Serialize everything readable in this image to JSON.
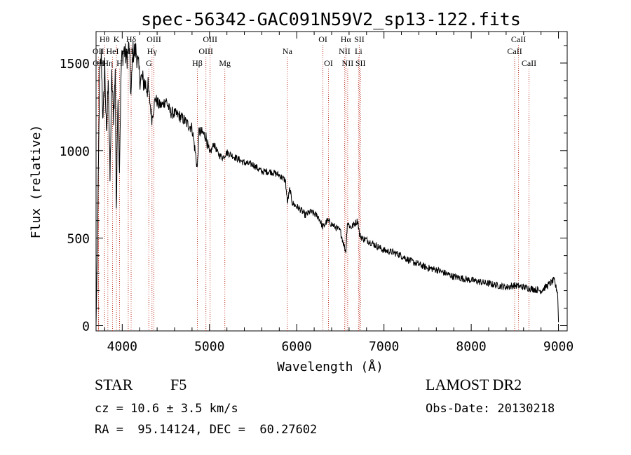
{
  "chart_data": {
    "type": "line",
    "title": "spec-56342-GAC091N59V2_sp13-122.fits",
    "xlabel": "Wavelength (Å)",
    "ylabel": "Flux (relative)",
    "xlim": [
      3700,
      9100
    ],
    "ylim": [
      -30,
      1680
    ],
    "xticks": [
      4000,
      5000,
      6000,
      7000,
      8000,
      9000
    ],
    "yticks": [
      0,
      500,
      1000,
      1500
    ],
    "grid": false,
    "series": [
      {
        "x": [
          3700,
          3720,
          3740,
          3760,
          3780,
          3800,
          3820,
          3840,
          3860,
          3880,
          3900,
          3920,
          3933,
          3950,
          3968,
          3990,
          4020,
          4050,
          4080,
          4101,
          4120,
          4160,
          4200,
          4250,
          4300,
          4340,
          4380,
          4420,
          4460,
          4500,
          4550,
          4600,
          4650,
          4700,
          4750,
          4800,
          4861,
          4880,
          4920,
          4960,
          5000,
          5020,
          5050,
          5100,
          5150,
          5200,
          5300,
          5400,
          5500,
          5600,
          5700,
          5800,
          5870,
          5893,
          5920,
          5950,
          6000,
          6050,
          6100,
          6150,
          6200,
          6250,
          6300,
          6350,
          6400,
          6450,
          6500,
          6563,
          6580,
          6620,
          6660,
          6700,
          6720,
          6750,
          6800,
          6900,
          7000,
          7100,
          7200,
          7300,
          7400,
          7500,
          7600,
          7700,
          7800,
          7900,
          8000,
          8100,
          8200,
          8300,
          8400,
          8500,
          8600,
          8700,
          8800,
          8900,
          8950,
          8970,
          8990,
          9000
        ],
        "y": [
          0,
          600,
          1420,
          1540,
          1150,
          1500,
          1060,
          1450,
          830,
          1420,
          1200,
          1440,
          620,
          1380,
          900,
          1510,
          1580,
          1520,
          1600,
          1300,
          1560,
          1570,
          1420,
          1390,
          1350,
          1180,
          1300,
          1260,
          1260,
          1290,
          1220,
          1210,
          1200,
          1180,
          1150,
          1130,
          900,
          1110,
          1100,
          1080,
          980,
          1000,
          1040,
          980,
          960,
          990,
          960,
          930,
          920,
          880,
          880,
          860,
          830,
          700,
          780,
          700,
          680,
          660,
          630,
          650,
          640,
          620,
          560,
          600,
          580,
          560,
          540,
          420,
          590,
          560,
          580,
          600,
          520,
          500,
          490,
          460,
          430,
          420,
          400,
          370,
          350,
          330,
          320,
          300,
          280,
          270,
          260,
          250,
          240,
          230,
          220,
          230,
          220,
          210,
          200,
          240,
          260,
          220,
          190,
          20
        ]
      }
    ],
    "line_markers": [
      {
        "label": "Hθ",
        "wave": 3797,
        "row": 0
      },
      {
        "label": "OII",
        "wave": 3727,
        "row": 1
      },
      {
        "label": "OII",
        "wave": 3729,
        "row": 2
      },
      {
        "label": "Hη",
        "wave": 3835,
        "row": 2
      },
      {
        "label": "HeI",
        "wave": 3889,
        "row": 1
      },
      {
        "label": "K",
        "wave": 3934,
        "row": 0
      },
      {
        "label": "H",
        "wave": 3969,
        "row": 2
      },
      {
        "label": "SII",
        "wave": 4069,
        "row": 1
      },
      {
        "label": "Hδ",
        "wave": 4102,
        "row": 0
      },
      {
        "label": "OIII",
        "wave": 4363,
        "row": 0
      },
      {
        "label": "Hγ",
        "wave": 4341,
        "row": 1
      },
      {
        "label": "G",
        "wave": 4305,
        "row": 2
      },
      {
        "label": "Hβ",
        "wave": 4861,
        "row": 2
      },
      {
        "label": "OIII",
        "wave": 5007,
        "row": 0
      },
      {
        "label": "OIII",
        "wave": 4959,
        "row": 1
      },
      {
        "label": "Mg",
        "wave": 5176,
        "row": 2
      },
      {
        "label": "Na",
        "wave": 5893,
        "row": 1
      },
      {
        "label": "OI",
        "wave": 6300,
        "row": 0
      },
      {
        "label": "OI",
        "wave": 6364,
        "row": 2
      },
      {
        "label": "Hα",
        "wave": 6563,
        "row": 0
      },
      {
        "label": "NII",
        "wave": 6548,
        "row": 1
      },
      {
        "label": "NII",
        "wave": 6584,
        "row": 2
      },
      {
        "label": "SII",
        "wave": 6717,
        "row": 0
      },
      {
        "label": "Li",
        "wave": 6708,
        "row": 1
      },
      {
        "label": "SII",
        "wave": 6731,
        "row": 2
      },
      {
        "label": "CaII",
        "wave": 8542,
        "row": 0
      },
      {
        "label": "CaII",
        "wave": 8498,
        "row": 1
      },
      {
        "label": "CaII",
        "wave": 8662,
        "row": 2
      }
    ]
  },
  "info": {
    "object_class": "STAR",
    "subclass": "F5",
    "survey": "LAMOST DR2",
    "cz": "cz = 10.6 ± 3.5 km/s",
    "obs_date": "Obs-Date: 20130218",
    "radec": "RA =  95.14124, DEC =  60.27602"
  }
}
